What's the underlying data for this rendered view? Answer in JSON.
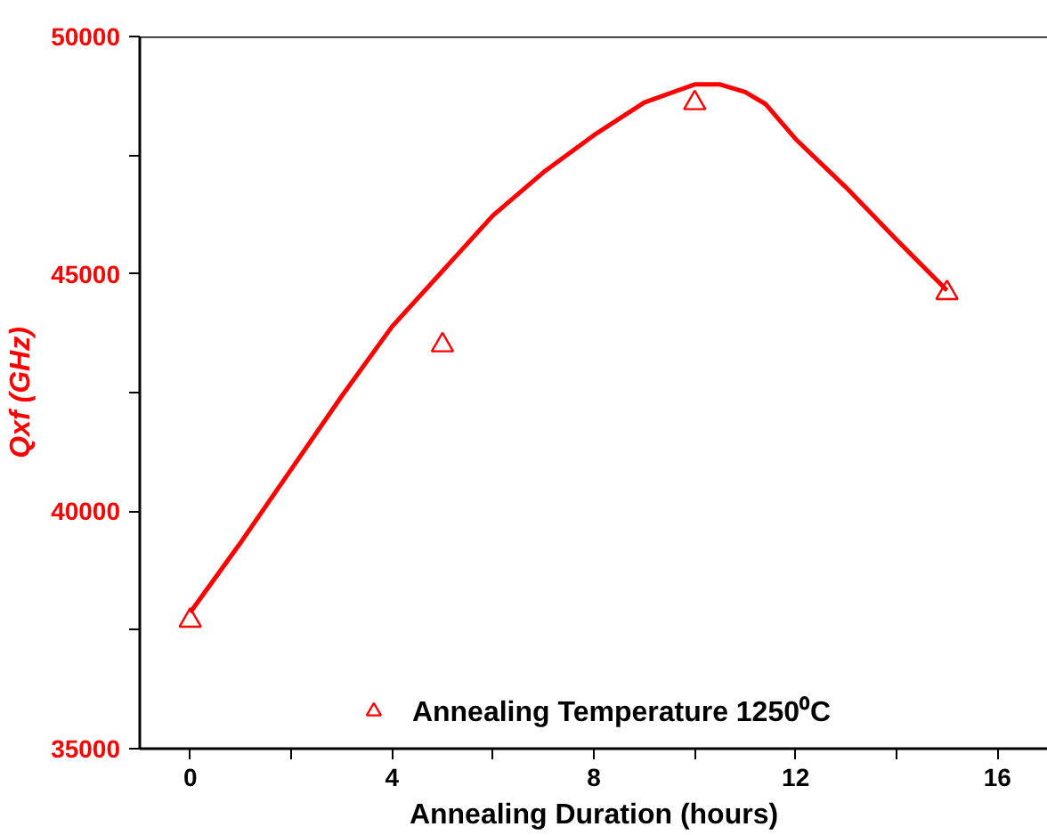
{
  "chart_data": {
    "type": "scatter",
    "xlabel": "Annealing Duration (hours)",
    "ylabel": "Qxf (GHz)",
    "xlim": [
      -1,
      17
    ],
    "ylim": [
      35000,
      50000
    ],
    "xticks": [
      0,
      {
        "value": 2,
        "label": null
      },
      4,
      {
        "value": 6,
        "label": null
      },
      8,
      {
        "value": 10,
        "label": null
      },
      12,
      {
        "value": 14,
        "label": null
      },
      16
    ],
    "yticks": [
      35000,
      {
        "value": 37500,
        "label": null
      },
      40000,
      {
        "value": 42500,
        "label": null
      },
      45000,
      {
        "value": 47500,
        "label": null
      },
      50000
    ],
    "grid": false,
    "legend": "bottom",
    "marker": "triangle",
    "series": [
      {
        "name": "Annealing Temperature 1250⁰C",
        "color": "#ff0000",
        "x": [
          0,
          5,
          10,
          15
        ],
        "values": [
          37700,
          43500,
          48600,
          44600
        ]
      },
      {
        "type": "line",
        "color": "#ff0000",
        "marker": "none",
        "x": [
          0,
          1,
          2,
          3,
          4,
          5,
          6,
          7,
          8,
          9,
          10,
          10.5,
          11,
          11.4,
          12,
          13,
          14,
          15
        ],
        "values": [
          37870,
          39340,
          40880,
          42420,
          43890,
          45060,
          46230,
          47140,
          47920,
          48610,
          48990,
          48990,
          48830,
          48580,
          47840,
          46820,
          45720,
          44650
        ]
      }
    ]
  }
}
